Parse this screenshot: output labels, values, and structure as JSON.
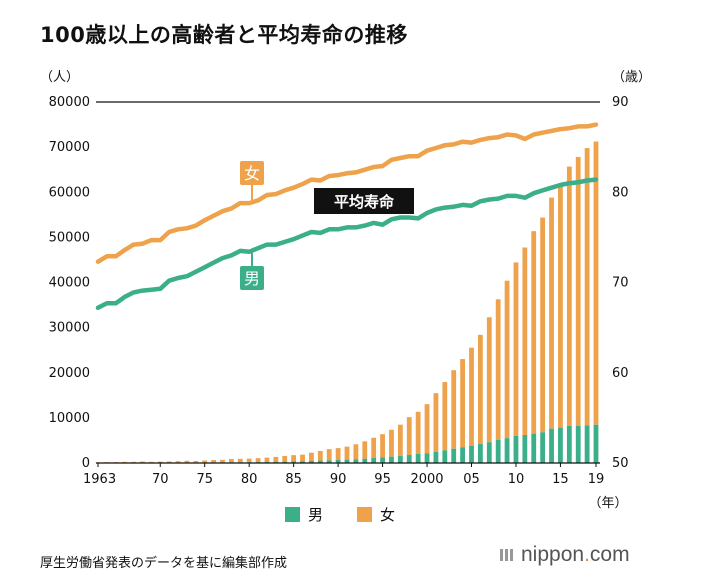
{
  "title": "100歳以上の高齢者と平均寿命の推移",
  "unit_left": "（人）",
  "unit_right": "（歳）",
  "unit_x": "（年）",
  "legend": {
    "male": "男",
    "female": "女"
  },
  "labels": {
    "female_line": "女",
    "male_line": "男",
    "life_expectancy": "平均寿命"
  },
  "source": "厚生労働省発表のデータを基に編集部作成",
  "brand": {
    "name": "nippon",
    "dot": ".",
    "tld": "com"
  },
  "colors": {
    "male": "#3aaf8a",
    "female": "#eea24c",
    "axis": "#111111"
  },
  "chart_data": {
    "type": "bar+line",
    "x_tick_labels": [
      "1963",
      "70",
      "75",
      "80",
      "85",
      "90",
      "95",
      "2000",
      "05",
      "10",
      "15",
      "19"
    ],
    "y_left": {
      "ticks": [
        0,
        10000,
        20000,
        30000,
        40000,
        50000,
        60000,
        70000,
        80000
      ],
      "ylim": [
        0,
        80000
      ]
    },
    "y_right": {
      "ticks": [
        50,
        60,
        70,
        80,
        90
      ],
      "ylim": [
        50,
        90
      ]
    },
    "years": [
      1963,
      1964,
      1965,
      1966,
      1967,
      1968,
      1969,
      1970,
      1971,
      1972,
      1973,
      1974,
      1975,
      1976,
      1977,
      1978,
      1979,
      1980,
      1981,
      1982,
      1983,
      1984,
      1985,
      1986,
      1987,
      1988,
      1989,
      1990,
      1991,
      1992,
      1993,
      1994,
      1995,
      1996,
      1997,
      1998,
      1999,
      2000,
      2001,
      2002,
      2003,
      2004,
      2005,
      2006,
      2007,
      2008,
      2009,
      2010,
      2011,
      2012,
      2013,
      2014,
      2015,
      2016,
      2017,
      2018,
      2019
    ],
    "centenarians_total": [
      153,
      191,
      198,
      252,
      255,
      327,
      252,
      310,
      339,
      405,
      495,
      427,
      548,
      666,
      705,
      888,
      937,
      968,
      1072,
      1193,
      1354,
      1567,
      1740,
      1851,
      2271,
      2668,
      3078,
      3298,
      3625,
      4152,
      4802,
      5593,
      6378,
      7373,
      8491,
      10158,
      11346,
      13036,
      15475,
      17934,
      20561,
      23038,
      25554,
      28395,
      32295,
      36276,
      40399,
      44449,
      47756,
      51376,
      54397,
      58820,
      61568,
      65692,
      67824,
      69785,
      71238
    ],
    "centenarians_male": [
      20,
      22,
      28,
      34,
      36,
      39,
      41,
      50,
      60,
      70,
      80,
      90,
      102,
      120,
      130,
      150,
      160,
      174,
      200,
      230,
      260,
      300,
      359,
      400,
      460,
      530,
      600,
      680,
      750,
      840,
      950,
      1100,
      1255,
      1400,
      1600,
      1800,
      2000,
      2158,
      2500,
      2800,
      3150,
      3500,
      3779,
      4200,
      4600,
      5100,
      5500,
      6000,
      6200,
      6500,
      6800,
      7600,
      7840,
      8200,
      8200,
      8300,
      8463
    ],
    "series": [
      {
        "name": "女",
        "life_expectancy": [
          72.3,
          72.9,
          72.9,
          73.6,
          74.2,
          74.3,
          74.7,
          74.7,
          75.6,
          75.9,
          76.0,
          76.3,
          76.9,
          77.4,
          77.9,
          78.2,
          78.8,
          78.8,
          79.1,
          79.7,
          79.8,
          80.2,
          80.5,
          80.9,
          81.4,
          81.3,
          81.8,
          81.9,
          82.1,
          82.2,
          82.5,
          82.8,
          82.9,
          83.6,
          83.8,
          84.0,
          84.0,
          84.6,
          84.9,
          85.2,
          85.3,
          85.6,
          85.5,
          85.8,
          86.0,
          86.1,
          86.4,
          86.3,
          85.9,
          86.4,
          86.6,
          86.8,
          87.0,
          87.1,
          87.3,
          87.3,
          87.5
        ]
      },
      {
        "name": "男",
        "life_expectancy": [
          67.2,
          67.7,
          67.7,
          68.4,
          68.9,
          69.1,
          69.2,
          69.3,
          70.2,
          70.5,
          70.7,
          71.2,
          71.7,
          72.2,
          72.7,
          73.0,
          73.5,
          73.4,
          73.8,
          74.2,
          74.2,
          74.5,
          74.8,
          75.2,
          75.6,
          75.5,
          75.9,
          75.9,
          76.1,
          76.1,
          76.3,
          76.6,
          76.4,
          77.0,
          77.2,
          77.2,
          77.1,
          77.7,
          78.1,
          78.3,
          78.4,
          78.6,
          78.5,
          79.0,
          79.2,
          79.3,
          79.6,
          79.6,
          79.4,
          79.9,
          80.2,
          80.5,
          80.8,
          81.0,
          81.1,
          81.3,
          81.4
        ]
      }
    ]
  }
}
